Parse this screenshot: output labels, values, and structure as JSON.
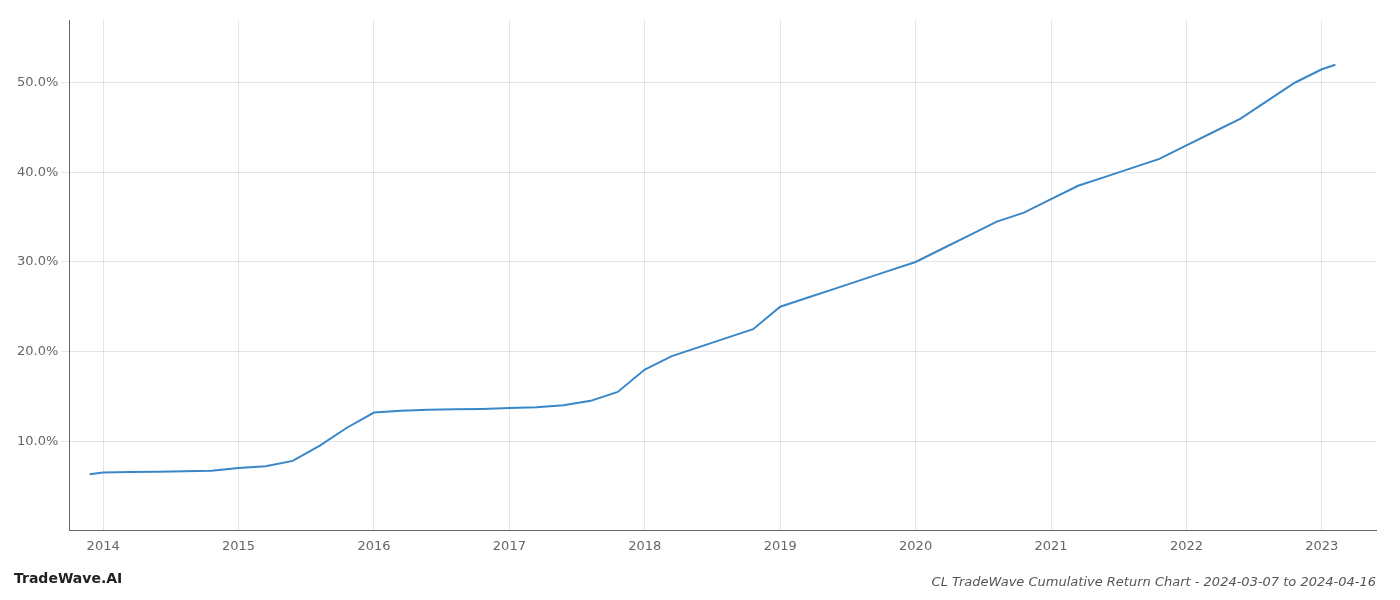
{
  "chart_data": {
    "type": "line",
    "title": "CL TradeWave Cumulative Return Chart - 2024-03-07 to 2024-04-16",
    "annotations": [
      "TradeWave.AI"
    ],
    "x": [
      2013.9,
      2014.0,
      2014.2,
      2014.4,
      2014.6,
      2014.8,
      2015.0,
      2015.2,
      2015.4,
      2015.6,
      2015.8,
      2016.0,
      2016.2,
      2016.4,
      2016.6,
      2016.8,
      2017.0,
      2017.2,
      2017.4,
      2017.6,
      2017.8,
      2018.0,
      2018.2,
      2018.4,
      2018.6,
      2018.8,
      2019.0,
      2019.2,
      2019.4,
      2019.6,
      2019.8,
      2020.0,
      2020.2,
      2020.4,
      2020.6,
      2020.8,
      2021.0,
      2021.2,
      2021.4,
      2021.6,
      2021.8,
      2022.0,
      2022.2,
      2022.4,
      2022.6,
      2022.8,
      2023.0,
      2023.1
    ],
    "values": [
      6.3,
      6.5,
      6.55,
      6.6,
      6.65,
      6.7,
      7.0,
      7.2,
      7.8,
      9.5,
      11.5,
      13.2,
      13.4,
      13.5,
      13.55,
      13.6,
      13.7,
      13.8,
      14.0,
      14.5,
      15.5,
      18.0,
      19.5,
      20.5,
      21.5,
      22.5,
      25.0,
      26.0,
      27.0,
      28.0,
      29.0,
      30.0,
      31.5,
      33.0,
      34.5,
      35.5,
      37.0,
      38.5,
      39.5,
      40.5,
      41.5,
      43.0,
      44.5,
      46.0,
      48.0,
      50.0,
      51.5,
      52.0
    ],
    "color": "#3a87c8",
    "xlim": [
      2013.75,
      2023.4
    ],
    "ylim": [
      0,
      57
    ],
    "xticks": [
      2014,
      2015,
      2016,
      2017,
      2018,
      2019,
      2020,
      2021,
      2022,
      2023
    ],
    "yticks": [
      {
        "value": 10.0,
        "label": "10.0%"
      },
      {
        "value": 20.0,
        "label": "20.0%"
      },
      {
        "value": 30.0,
        "label": "30.0%"
      },
      {
        "value": 40.0,
        "label": "40.0%"
      },
      {
        "value": 50.0,
        "label": "50.0%"
      }
    ],
    "grid": true
  }
}
